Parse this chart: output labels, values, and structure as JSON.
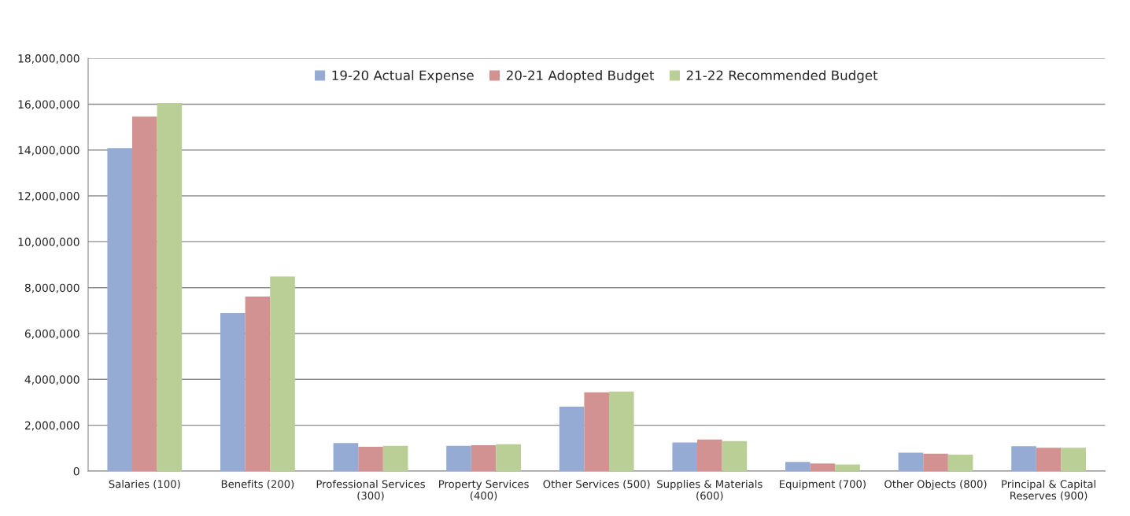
{
  "chart_data": {
    "type": "bar",
    "categories": [
      "Salaries (100)",
      "Benefits (200)",
      "Professional Services\n(300)",
      "Property Services\n(400)",
      "Other Services (500)",
      "Supplies & Materials\n(600)",
      "Equipment (700)",
      "Other Objects (800)",
      "Principal & Capital\nReserves (900)"
    ],
    "series": [
      {
        "name": "19-20 Actual Expense",
        "color": "#95abd3",
        "values": [
          14090000,
          6890000,
          1220000,
          1100000,
          2810000,
          1250000,
          400000,
          800000,
          1090000
        ]
      },
      {
        "name": "20-21 Adopted Budget",
        "color": "#d19291",
        "values": [
          15460000,
          7610000,
          1060000,
          1130000,
          3440000,
          1380000,
          330000,
          760000,
          1020000
        ]
      },
      {
        "name": "21-22 Recommended Budget",
        "color": "#b9cf96",
        "values": [
          16050000,
          8490000,
          1100000,
          1170000,
          3470000,
          1310000,
          290000,
          720000,
          1020000
        ]
      }
    ],
    "ylim": [
      0,
      18000000
    ],
    "yticks": [
      {
        "value": 0,
        "label": "0"
      },
      {
        "value": 2000000,
        "label": "2,000,000"
      },
      {
        "value": 4000000,
        "label": "4,000,000"
      },
      {
        "value": 6000000,
        "label": "6,000,000"
      },
      {
        "value": 8000000,
        "label": "8,000,000"
      },
      {
        "value": 10000000,
        "label": "10,000,000"
      },
      {
        "value": 12000000,
        "label": "12,000,000"
      },
      {
        "value": 14000000,
        "label": "14,000,000"
      },
      {
        "value": 16000000,
        "label": "16,000,000"
      },
      {
        "value": 18000000,
        "label": "18,000,000"
      }
    ],
    "grid": "y",
    "legend": "top"
  }
}
